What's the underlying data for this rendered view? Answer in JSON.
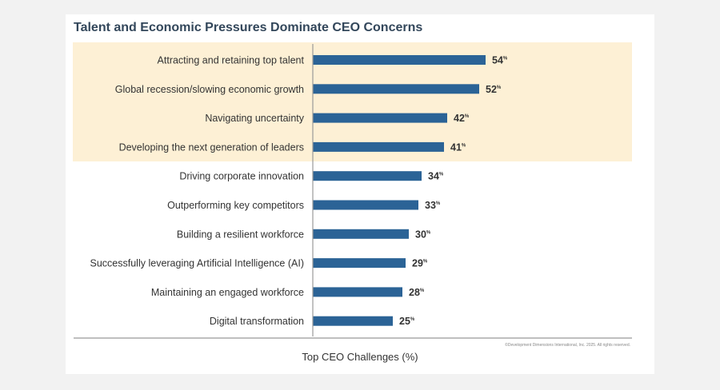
{
  "title": "Talent and Economic Pressures Dominate CEO Concerns",
  "copyright": "©Development Dimensions International, Inc. 2025. All rights reserved.",
  "colors": {
    "bar": "#2b6396",
    "highlight": "#fdf0d5",
    "axis": "#999999",
    "label": "#333333"
  },
  "chart_data": {
    "type": "bar",
    "orientation": "horizontal",
    "title": "Talent and Economic Pressures Dominate CEO Concerns",
    "xlabel": "Top CEO Challenges (%)",
    "ylabel": "",
    "value_suffix": "%",
    "highlighted_count": 4,
    "categories": [
      "Attracting and retaining top talent",
      "Global recession/slowing economic growth",
      "Navigating uncertainty",
      "Developing the next generation of leaders",
      "Driving corporate innovation",
      "Outperforming key competitors",
      "Building a resilient workforce",
      "Successfully leveraging Artificial Intelligence (AI)",
      "Maintaining an engaged workforce",
      "Digital transformation"
    ],
    "values": [
      54,
      52,
      42,
      41,
      34,
      33,
      30,
      29,
      28,
      25
    ]
  }
}
